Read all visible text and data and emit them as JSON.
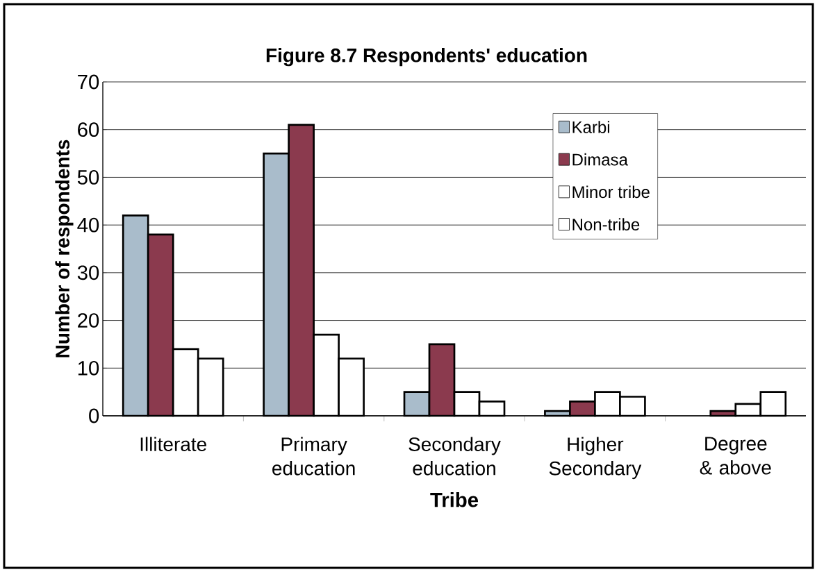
{
  "chart_data": {
    "type": "bar",
    "title": "Figure 8.7  Respondents' education",
    "xlabel": "Tribe",
    "ylabel": "Number of respondents",
    "categories": [
      "Illiterate",
      "Primary education",
      "Secondary education",
      "Higher Secondary",
      "Degree & above"
    ],
    "series": [
      {
        "name": "Karbi",
        "color": "#a9bccb",
        "values": [
          42,
          55,
          5,
          1,
          null
        ]
      },
      {
        "name": "Dimasa",
        "color": "#8b3a4e",
        "values": [
          38,
          61,
          15,
          3,
          1
        ]
      },
      {
        "name": "Minor tribe",
        "color": "#ffffff",
        "values": [
          14,
          17,
          5,
          5,
          2.5
        ]
      },
      {
        "name": "Non-tribe",
        "color": "#ffffff",
        "values": [
          12,
          12,
          3,
          4,
          5
        ]
      }
    ],
    "ylim": [
      0,
      70
    ],
    "yticks": [
      0,
      10,
      20,
      30,
      40,
      50,
      60,
      70
    ],
    "grid": "y",
    "legend": "top right"
  }
}
